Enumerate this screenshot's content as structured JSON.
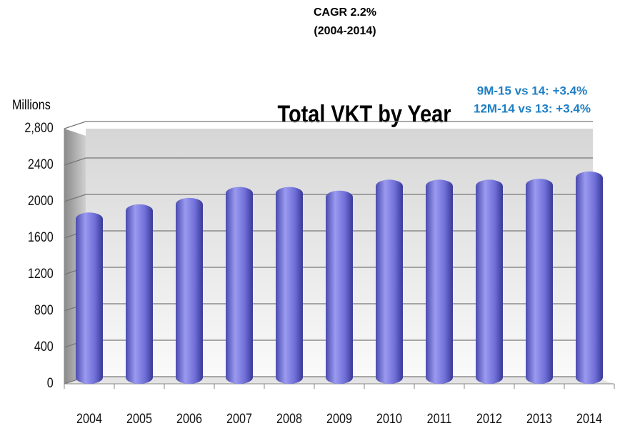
{
  "chart_data": {
    "type": "bar",
    "title": "Total VKT by Year",
    "subtitle": [
      "CAGR 2.2%",
      "(2004-2014)"
    ],
    "y_axis_label": "Millions",
    "annotations": [
      "9M-15 vs 14: +3.4%",
      "12M-14 vs 13: +3.4%"
    ],
    "categories": [
      "2004",
      "2005",
      "2006",
      "2007",
      "2008",
      "2009",
      "2010",
      "2011",
      "2012",
      "2013",
      "2014"
    ],
    "values": [
      1880,
      1970,
      2040,
      2160,
      2160,
      2120,
      2240,
      2240,
      2240,
      2250,
      2330
    ],
    "color": "#7b7be0",
    "ylim": [
      0,
      2800
    ],
    "yticks": [
      0,
      400,
      800,
      1200,
      1600,
      2000,
      2400,
      {
        "value": 2800,
        "label": "2,800"
      }
    ],
    "grid": true
  }
}
